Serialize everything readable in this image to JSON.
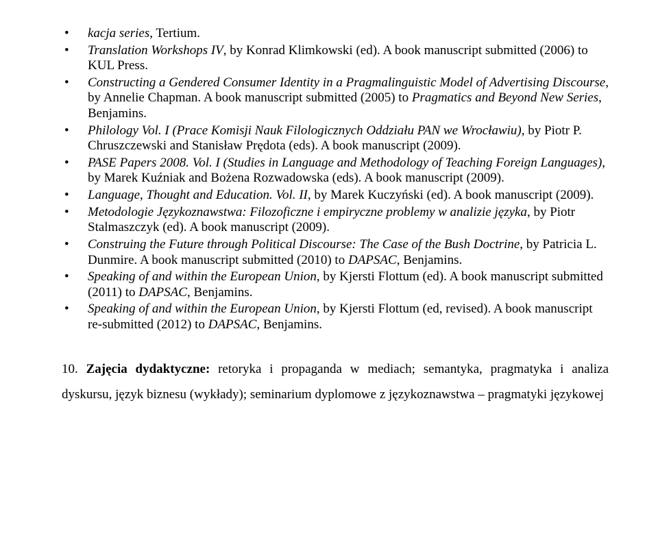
{
  "bullets": [
    {
      "frag": [
        {
          "t": "kacja series",
          "s": "it"
        },
        {
          "t": ", Tertium."
        }
      ]
    },
    {
      "frag": [
        {
          "t": "Translation Workshops IV",
          "s": "it"
        },
        {
          "t": ", by Konrad Klimkowski (ed). A book manuscript submitted (2006) to KUL Press."
        }
      ]
    },
    {
      "frag": [
        {
          "t": "Constructing a Gendered Consumer Identity in a Pragmalinguistic Model of Advertising Discourse",
          "s": "it"
        },
        {
          "t": ", by Annelie Chapman. A book manuscript submitted (2005) to "
        },
        {
          "t": "Pragmatics and Beyond New Series",
          "s": "it"
        },
        {
          "t": ", Benjamins."
        }
      ]
    },
    {
      "frag": [
        {
          "t": "Philology Vol. I (Prace Komisji Nauk Filologicznych Oddziału PAN we Wrocławiu)",
          "s": "it"
        },
        {
          "t": ", by Piotr P. Chruszczewski and Stanisław Prędota (eds). A book manuscript (2009)."
        }
      ]
    },
    {
      "frag": [
        {
          "t": "PASE Papers 2008. Vol. I (Studies in Language and Methodology of Teaching Foreign Languages)",
          "s": "it"
        },
        {
          "t": ", by Marek Kuźniak and Bożena Rozwadowska (eds). A book manuscript (2009)."
        }
      ]
    },
    {
      "frag": [
        {
          "t": "Language, Thought and Education. Vol. II",
          "s": "it"
        },
        {
          "t": ", by Marek Kuczyński (ed). A book manuscript (2009)."
        }
      ]
    },
    {
      "frag": [
        {
          "t": "Metodologie Językoznawstwa: Filozoficzne i empiryczne problemy w analizie języka",
          "s": "it"
        },
        {
          "t": ", by Piotr Stalmaszczyk (ed). A book manuscript (2009)."
        }
      ]
    },
    {
      "frag": [
        {
          "t": "Construing the Future through Political Discourse: The Case of the Bush Doctrine",
          "s": "it"
        },
        {
          "t": ", by Patricia L. Dunmire. A book manuscript submitted (2010) to "
        },
        {
          "t": "DAPSAC",
          "s": "it"
        },
        {
          "t": ", Benjamins."
        }
      ]
    },
    {
      "frag": [
        {
          "t": "Speaking of and within the European Union",
          "s": "it"
        },
        {
          "t": ", by Kjersti Flottum (ed). A book manuscript submitted (2011) to "
        },
        {
          "t": "DAPSAC",
          "s": "it"
        },
        {
          "t": ", Benjamins."
        }
      ]
    },
    {
      "frag": [
        {
          "t": "Speaking of and within the European Union",
          "s": "it"
        },
        {
          "t": ", by Kjersti Flottum (ed, revised). A book manuscript re-submitted (2012) to "
        },
        {
          "t": "DAPSAC",
          "s": "it"
        },
        {
          "t": ", Benjamins."
        }
      ]
    }
  ],
  "section": {
    "number": "10.",
    "heading": "Zajęcia dydaktyczne:",
    "body": " retoryka i propaganda w mediach; semantyka, pragmatyka i analiza dyskursu, język biznesu (wykłady); seminarium dyplomowe z językoznawstwa – pragmatyki językowej"
  },
  "colors": {
    "text": "#000000",
    "background": "#ffffff"
  },
  "typography": {
    "font_family": "Times New Roman",
    "base_size_pt": 14,
    "italic_for_titles": true,
    "bold_for_heading": true
  }
}
